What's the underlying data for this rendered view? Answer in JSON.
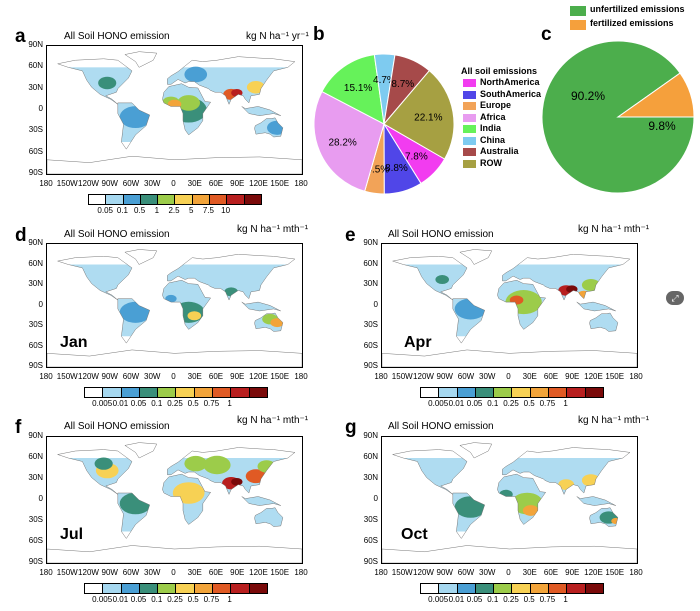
{
  "panels": {
    "a": {
      "letter": "a",
      "title": "All Soil HONO emission",
      "unit": "kg N ha⁻¹ yr⁻¹",
      "month": ""
    },
    "b": {
      "letter": "b"
    },
    "c": {
      "letter": "c"
    },
    "d": {
      "letter": "d",
      "title": "All Soil HONO emission",
      "unit": "kg N ha⁻¹ mth⁻¹",
      "month": "Jan"
    },
    "e": {
      "letter": "e",
      "title": "All Soil HONO emission",
      "unit": "kg N ha⁻¹ mth⁻¹",
      "month": "Apr"
    },
    "f": {
      "letter": "f",
      "title": "All Soil HONO emission",
      "unit": "kg N ha⁻¹ mth⁻¹",
      "month": "Jul"
    },
    "g": {
      "letter": "g",
      "title": "All Soil HONO emission",
      "unit": "kg N ha⁻¹ mth⁻¹",
      "month": "Oct"
    }
  },
  "lat_ticks": [
    "90N",
    "60N",
    "30N",
    "0",
    "30S",
    "60S",
    "90S"
  ],
  "lon_ticks": [
    "180",
    "150W",
    "120W",
    "90W",
    "60W",
    "30W",
    "0",
    "30E",
    "60E",
    "90E",
    "120E",
    "150E",
    "180"
  ],
  "colorbar_colors": [
    "#ffffff",
    "#a6d8f0",
    "#4a9fd4",
    "#3a8f7a",
    "#9ccc4a",
    "#f7d154",
    "#f2a43a",
    "#e05a24",
    "#b81f1f",
    "#7a0a0a"
  ],
  "colorbar_annual": [
    "0.05",
    "0.1",
    "0.5",
    "1",
    "2.5",
    "5",
    "7.5",
    "10"
  ],
  "colorbar_monthly": [
    "0.005",
    "0.01",
    "0.05",
    "0.1",
    "0.25",
    "0.5",
    "0.75",
    "1"
  ],
  "chart_data": [
    {
      "type": "pie",
      "title": "All soil emissions",
      "categories": [
        "NorthAmerica",
        "SouthAmerica",
        "Europe",
        "Africa",
        "India",
        "China",
        "Australia",
        "ROW"
      ],
      "values": [
        7.8,
        8.8,
        4.5,
        28.2,
        15.1,
        4.7,
        8.7,
        22.1
      ],
      "labels": [
        "7.8%",
        "8.8%",
        "4.5%",
        "28.2%",
        "15.1%",
        "4.7%",
        "8.7%",
        "22.1%"
      ],
      "colors": [
        "#f23cf0",
        "#5046e8",
        "#f2a358",
        "#e89cf0",
        "#66f25a",
        "#7ecbf0",
        "#a64a4a",
        "#a6a042"
      ],
      "legend_placement": "right"
    },
    {
      "type": "pie",
      "categories": [
        "unfertilized emissions",
        "fertilized emissions"
      ],
      "values": [
        90.2,
        9.8
      ],
      "labels": [
        "90.2%",
        "9.8%"
      ],
      "colors": [
        "#4cae4c",
        "#f5a03c"
      ],
      "legend_placement": "top"
    }
  ]
}
